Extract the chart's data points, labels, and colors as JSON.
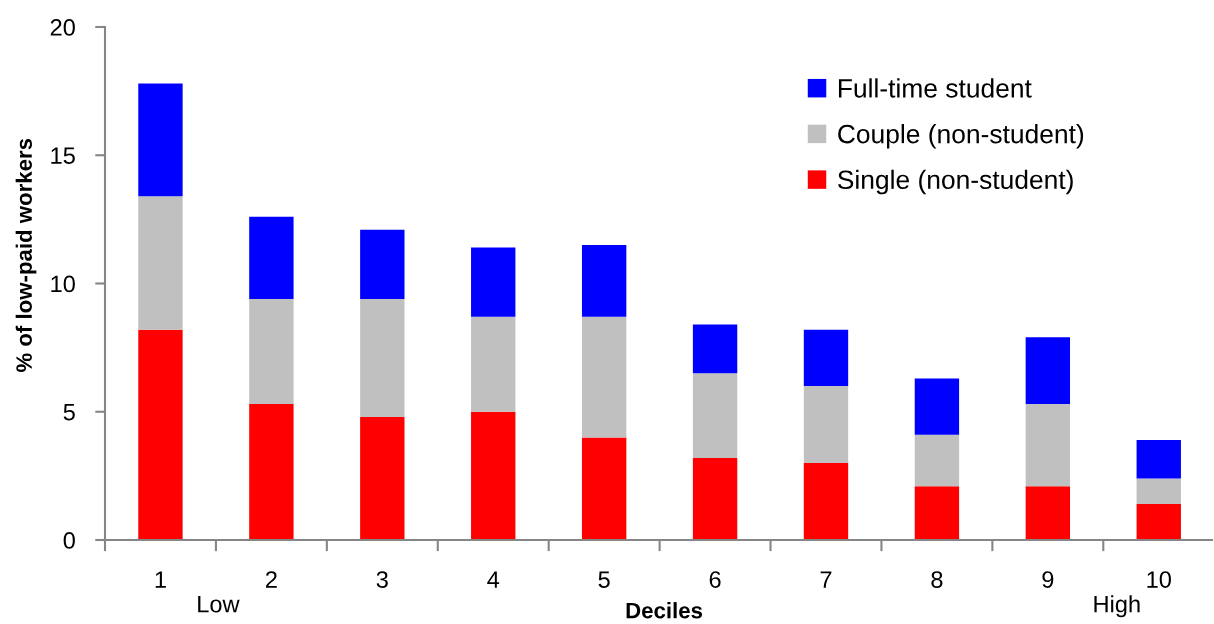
{
  "chart_data": {
    "type": "bar",
    "stacked": true,
    "xlabel": "Deciles",
    "ylabel": "% of low-paid workers",
    "categories": [
      "1",
      "2",
      "3",
      "4",
      "5",
      "6",
      "7",
      "8",
      "9",
      "10"
    ],
    "series": [
      {
        "name": "Single (non-student)",
        "color": "#ff0000",
        "values": [
          8.2,
          5.3,
          4.8,
          5.0,
          4.0,
          3.2,
          3.0,
          2.1,
          2.1,
          1.4
        ]
      },
      {
        "name": "Couple (non-student)",
        "color": "#c0c0c0",
        "values": [
          5.2,
          4.1,
          4.6,
          3.7,
          4.7,
          3.3,
          3.0,
          2.0,
          3.2,
          1.0
        ]
      },
      {
        "name": "Full-time student",
        "color": "#0000ff",
        "values": [
          4.4,
          3.2,
          2.7,
          2.7,
          2.8,
          1.9,
          2.2,
          2.2,
          2.6,
          1.5
        ]
      }
    ],
    "ylim": [
      0,
      20
    ],
    "yticks": [
      0,
      5,
      10,
      15,
      20
    ],
    "grid": false,
    "legend": "top right",
    "annotations": [
      "Low",
      "High"
    ]
  }
}
